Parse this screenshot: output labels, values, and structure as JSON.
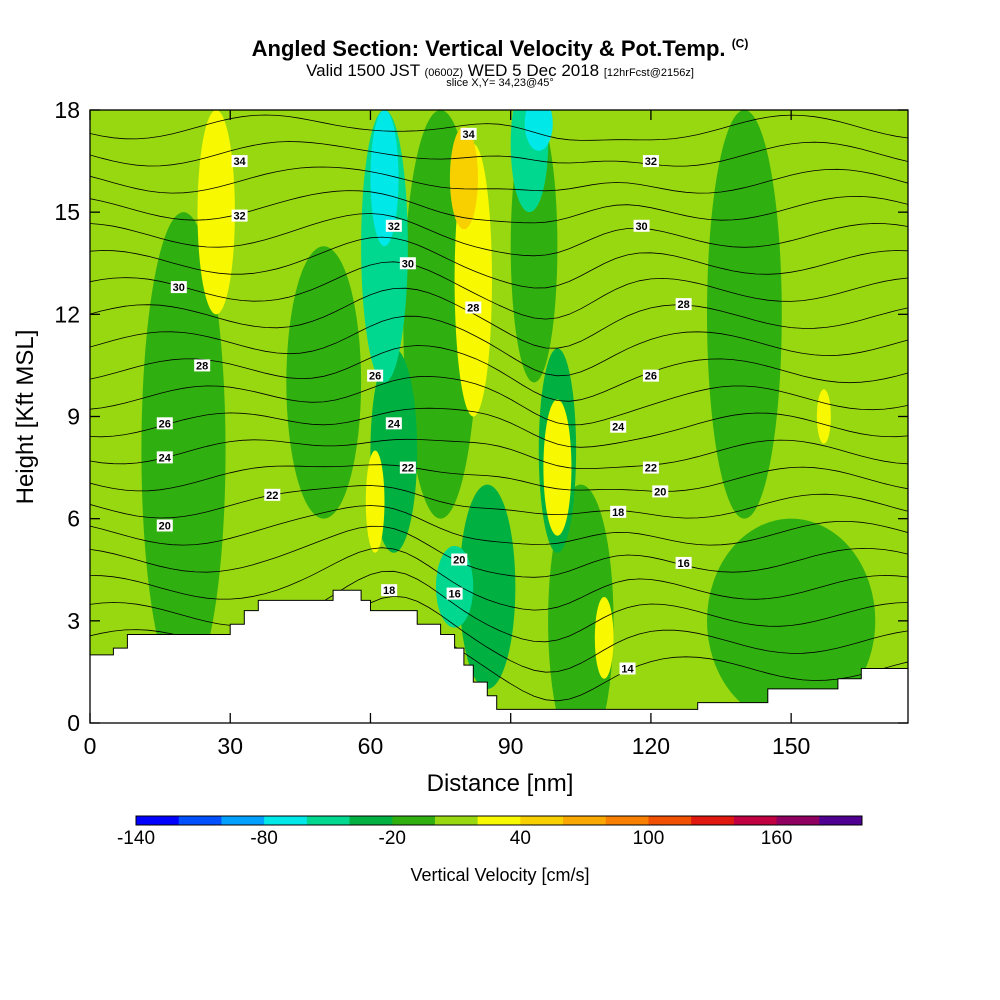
{
  "header": {
    "title_main": "Angled Section: Vertical Velocity & Pot.Temp.",
    "title_unit": "(C)",
    "valid_prefix": "Valid 1500 JST",
    "valid_utc": "(0600Z)",
    "valid_date": "WED 5 Dec 2018",
    "valid_fcst": "[12hrFcst@2156z]",
    "slice": "slice X,Y= 34,23@45°"
  },
  "chart_data": {
    "type": "heatmap",
    "xlabel": "Distance [nm]",
    "ylabel": "Height [Kft MSL]",
    "xlim": [
      0,
      175
    ],
    "ylim": [
      0,
      18
    ],
    "xticks": [
      0,
      30,
      60,
      90,
      120,
      150
    ],
    "yticks": [
      0,
      3,
      6,
      9,
      12,
      15,
      18
    ],
    "colorbar": {
      "title": "Vertical Velocity [cm/s]",
      "levels": [
        -140,
        -120,
        -100,
        -80,
        -60,
        -40,
        -20,
        0,
        20,
        40,
        60,
        80,
        100,
        120,
        140,
        160,
        180
      ],
      "labels": [
        -140,
        -80,
        -20,
        40,
        100,
        160
      ],
      "colors": [
        "#0000ff",
        "#0050ff",
        "#00a0ff",
        "#00e8e8",
        "#00d890",
        "#00b040",
        "#30b010",
        "#98d810",
        "#f8f800",
        "#f8d000",
        "#f8a800",
        "#f88000",
        "#f05000",
        "#e01810",
        "#c00040",
        "#900060",
        "#500090"
      ]
    },
    "terrain_height_kft": [
      [
        0,
        2.0
      ],
      [
        5,
        2.0
      ],
      [
        5,
        2.2
      ],
      [
        8,
        2.2
      ],
      [
        8,
        2.6
      ],
      [
        30,
        2.6
      ],
      [
        30,
        2.9
      ],
      [
        33,
        2.9
      ],
      [
        33,
        3.3
      ],
      [
        36,
        3.3
      ],
      [
        36,
        3.6
      ],
      [
        52,
        3.6
      ],
      [
        52,
        3.9
      ],
      [
        58,
        3.9
      ],
      [
        58,
        3.6
      ],
      [
        60,
        3.6
      ],
      [
        60,
        3.3
      ],
      [
        70,
        3.3
      ],
      [
        70,
        2.9
      ],
      [
        75,
        2.9
      ],
      [
        75,
        2.6
      ],
      [
        78,
        2.6
      ],
      [
        78,
        2.2
      ],
      [
        80,
        2.2
      ],
      [
        80,
        1.7
      ],
      [
        82,
        1.7
      ],
      [
        82,
        1.2
      ],
      [
        85,
        1.2
      ],
      [
        85,
        0.8
      ],
      [
        87,
        0.8
      ],
      [
        87,
        0.4
      ],
      [
        130,
        0.4
      ],
      [
        130,
        0.6
      ],
      [
        145,
        0.6
      ],
      [
        145,
        1.0
      ],
      [
        160,
        1.0
      ],
      [
        160,
        1.3
      ],
      [
        165,
        1.3
      ],
      [
        165,
        1.6
      ],
      [
        175,
        1.6
      ]
    ],
    "theta_contours": [
      {
        "level": 14,
        "label_at": [
          115,
          1.6
        ]
      },
      {
        "level": 16,
        "label_at": [
          78,
          3.8
        ]
      },
      {
        "level": 16,
        "label_at": [
          127,
          4.7
        ]
      },
      {
        "level": 18,
        "label_at": [
          64,
          3.9
        ]
      },
      {
        "level": 18,
        "label_at": [
          113,
          6.2
        ]
      },
      {
        "level": 20,
        "label_at": [
          16,
          5.8
        ]
      },
      {
        "level": 20,
        "label_at": [
          79,
          4.8
        ]
      },
      {
        "level": 20,
        "label_at": [
          122,
          6.8
        ]
      },
      {
        "level": 22,
        "label_at": [
          39,
          6.7
        ]
      },
      {
        "level": 22,
        "label_at": [
          68,
          7.5
        ]
      },
      {
        "level": 22,
        "label_at": [
          120,
          7.5
        ]
      },
      {
        "level": 24,
        "label_at": [
          16,
          7.8
        ]
      },
      {
        "level": 24,
        "label_at": [
          65,
          8.8
        ]
      },
      {
        "level": 24,
        "label_at": [
          113,
          8.7
        ]
      },
      {
        "level": 26,
        "label_at": [
          16,
          8.8
        ]
      },
      {
        "level": 26,
        "label_at": [
          61,
          10.2
        ]
      },
      {
        "level": 26,
        "label_at": [
          120,
          10.2
        ]
      },
      {
        "level": 28,
        "label_at": [
          24,
          10.5
        ]
      },
      {
        "level": 28,
        "label_at": [
          82,
          12.2
        ]
      },
      {
        "level": 28,
        "label_at": [
          127,
          12.3
        ]
      },
      {
        "level": 30,
        "label_at": [
          19,
          12.8
        ]
      },
      {
        "level": 30,
        "label_at": [
          68,
          13.5
        ]
      },
      {
        "level": 30,
        "label_at": [
          118,
          14.6
        ]
      },
      {
        "level": 32,
        "label_at": [
          32,
          14.9
        ]
      },
      {
        "level": 32,
        "label_at": [
          65,
          14.6
        ]
      },
      {
        "level": 32,
        "label_at": [
          120,
          16.5
        ]
      },
      {
        "level": 34,
        "label_at": [
          32,
          16.5
        ]
      },
      {
        "level": 34,
        "label_at": [
          81,
          17.3
        ]
      }
    ]
  }
}
